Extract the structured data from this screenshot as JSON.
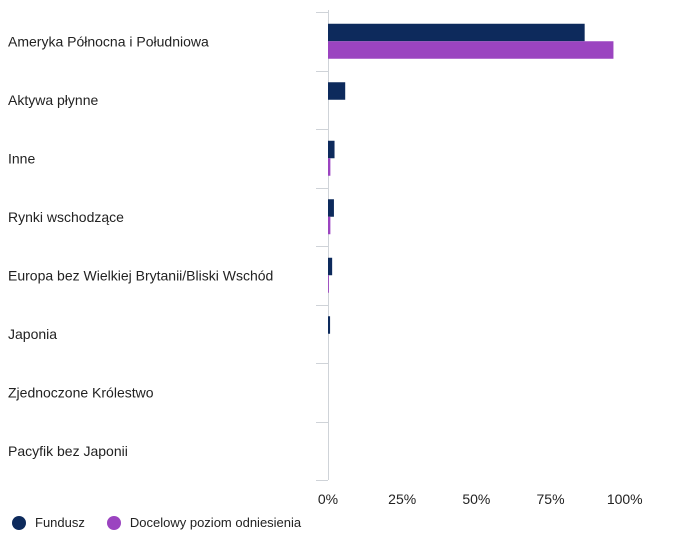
{
  "chart_data": {
    "type": "bar",
    "orientation": "horizontal",
    "categories": [
      "Ameryka Północna i Południowa",
      "Aktywa płynne",
      "Inne",
      "Rynki wschodzące",
      "Europa bez Wielkiej Brytanii/Bliski Wschód",
      "Japonia",
      "Zjednoczone Królestwo",
      "Pacyfik bez Japonii"
    ],
    "series": [
      {
        "name": "Fundusz",
        "color": "#0d2a5c",
        "values": [
          86.5,
          5.8,
          2.2,
          2.0,
          1.4,
          0.7,
          0.0,
          0.0
        ]
      },
      {
        "name": "Docelowy poziom odniesienia",
        "color": "#9b44c0",
        "values": [
          96.2,
          0.0,
          0.8,
          0.8,
          0.3,
          0.0,
          0.0,
          0.0
        ]
      }
    ],
    "xlim": [
      0,
      122
    ],
    "xticks": [
      0,
      25,
      50,
      75,
      100
    ],
    "tick_labels": [
      "0%",
      "25%",
      "50%",
      "75%",
      "100%"
    ],
    "legend_position": "bottom-left"
  }
}
